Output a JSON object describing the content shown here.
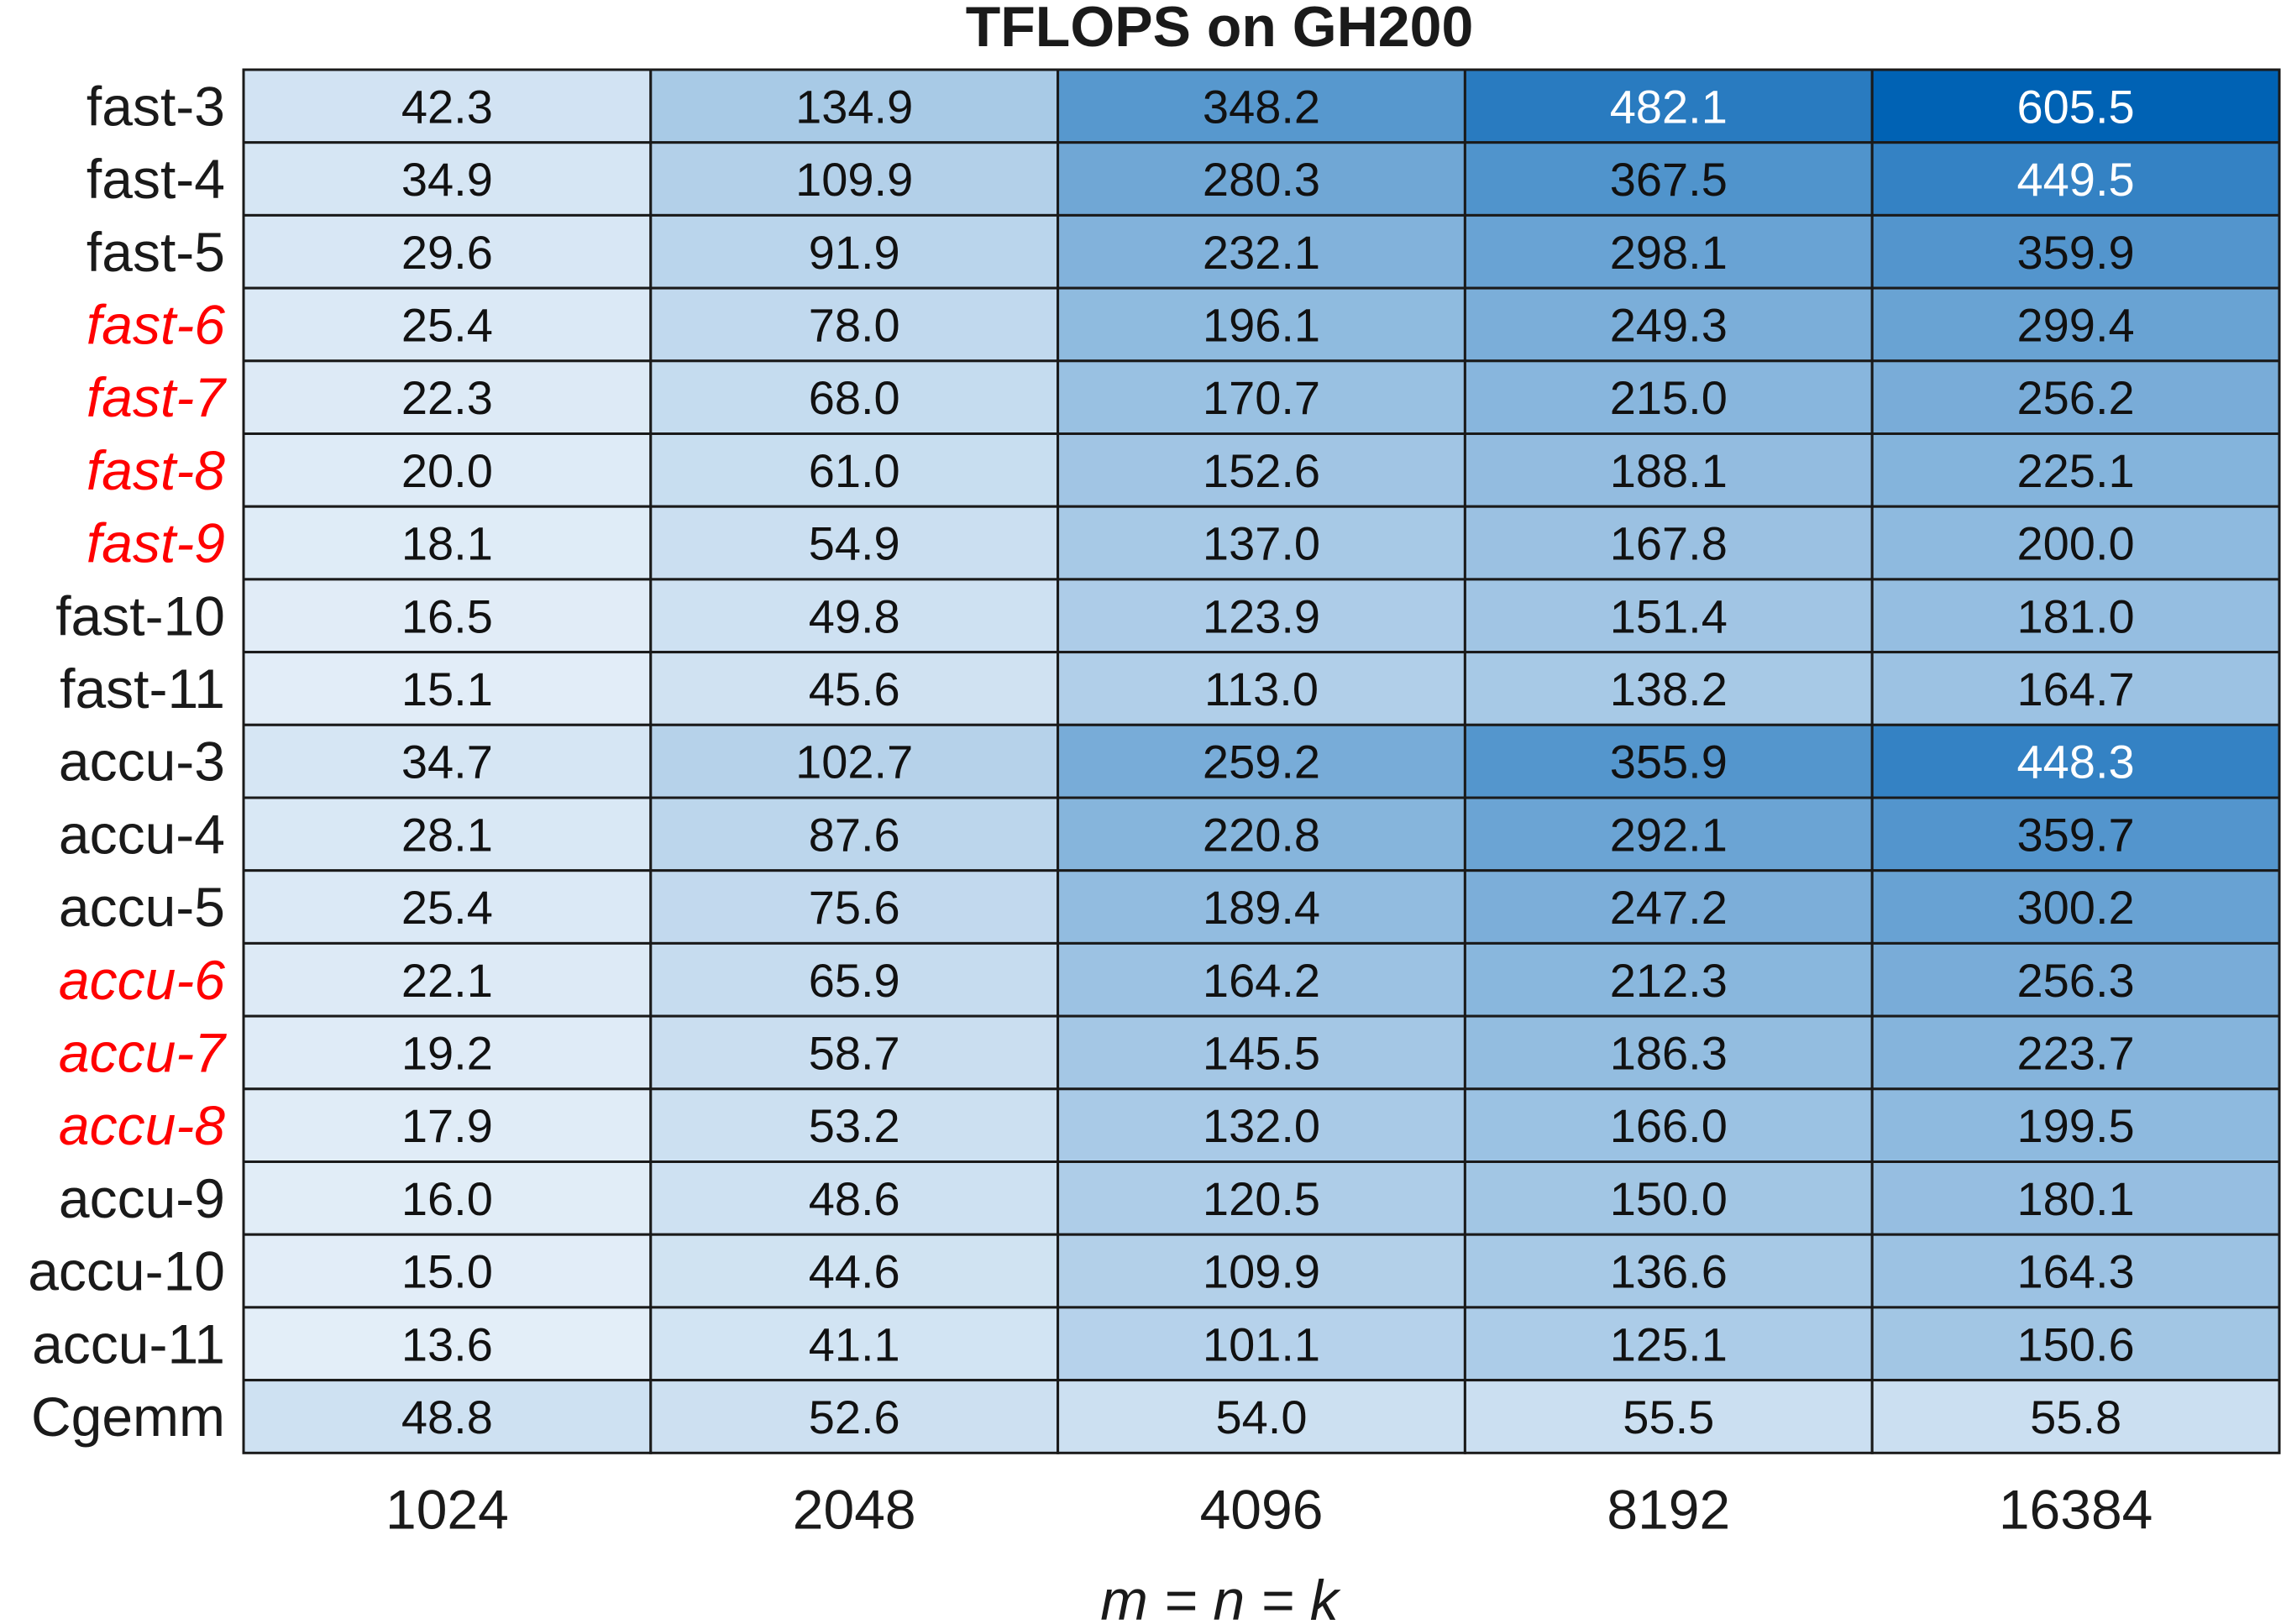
{
  "chart_data": {
    "type": "heatmap",
    "title": "TFLOPS on GH200",
    "xlabel": "m = n = k",
    "ylabel": "",
    "colors": {
      "low": "#e3eef8",
      "high": "#0062b4",
      "highlight": "#ff0000",
      "grid": "#1a1a1a"
    },
    "x": [
      "1024",
      "2048",
      "4096",
      "8192",
      "16384"
    ],
    "rows": [
      {
        "label": "fast-3",
        "highlight": false,
        "values": [
          42.3,
          134.9,
          348.2,
          482.1,
          605.5
        ]
      },
      {
        "label": "fast-4",
        "highlight": false,
        "values": [
          34.9,
          109.9,
          280.3,
          367.5,
          449.5
        ]
      },
      {
        "label": "fast-5",
        "highlight": false,
        "values": [
          29.6,
          91.9,
          232.1,
          298.1,
          359.9
        ]
      },
      {
        "label": "fast-6",
        "highlight": true,
        "values": [
          25.4,
          78.0,
          196.1,
          249.3,
          299.4
        ]
      },
      {
        "label": "fast-7",
        "highlight": true,
        "values": [
          22.3,
          68.0,
          170.7,
          215.0,
          256.2
        ]
      },
      {
        "label": "fast-8",
        "highlight": true,
        "values": [
          20.0,
          61.0,
          152.6,
          188.1,
          225.1
        ]
      },
      {
        "label": "fast-9",
        "highlight": true,
        "values": [
          18.1,
          54.9,
          137.0,
          167.8,
          200.0
        ]
      },
      {
        "label": "fast-10",
        "highlight": false,
        "values": [
          16.5,
          49.8,
          123.9,
          151.4,
          181.0
        ]
      },
      {
        "label": "fast-11",
        "highlight": false,
        "values": [
          15.1,
          45.6,
          113.0,
          138.2,
          164.7
        ]
      },
      {
        "label": "accu-3",
        "highlight": false,
        "values": [
          34.7,
          102.7,
          259.2,
          355.9,
          448.3
        ]
      },
      {
        "label": "accu-4",
        "highlight": false,
        "values": [
          28.1,
          87.6,
          220.8,
          292.1,
          359.7
        ]
      },
      {
        "label": "accu-5",
        "highlight": false,
        "values": [
          25.4,
          75.6,
          189.4,
          247.2,
          300.2
        ]
      },
      {
        "label": "accu-6",
        "highlight": true,
        "values": [
          22.1,
          65.9,
          164.2,
          212.3,
          256.3
        ]
      },
      {
        "label": "accu-7",
        "highlight": true,
        "values": [
          19.2,
          58.7,
          145.5,
          186.3,
          223.7
        ]
      },
      {
        "label": "accu-8",
        "highlight": true,
        "values": [
          17.9,
          53.2,
          132.0,
          166.0,
          199.5
        ]
      },
      {
        "label": "accu-9",
        "highlight": false,
        "values": [
          16.0,
          48.6,
          120.5,
          150.0,
          180.1
        ]
      },
      {
        "label": "accu-10",
        "highlight": false,
        "values": [
          15.0,
          44.6,
          109.9,
          136.6,
          164.3
        ]
      },
      {
        "label": "accu-11",
        "highlight": false,
        "values": [
          13.6,
          41.1,
          101.1,
          125.1,
          150.6
        ]
      },
      {
        "label": "Cgemm",
        "highlight": false,
        "values": [
          48.8,
          52.6,
          54.0,
          55.5,
          55.8
        ]
      }
    ]
  }
}
